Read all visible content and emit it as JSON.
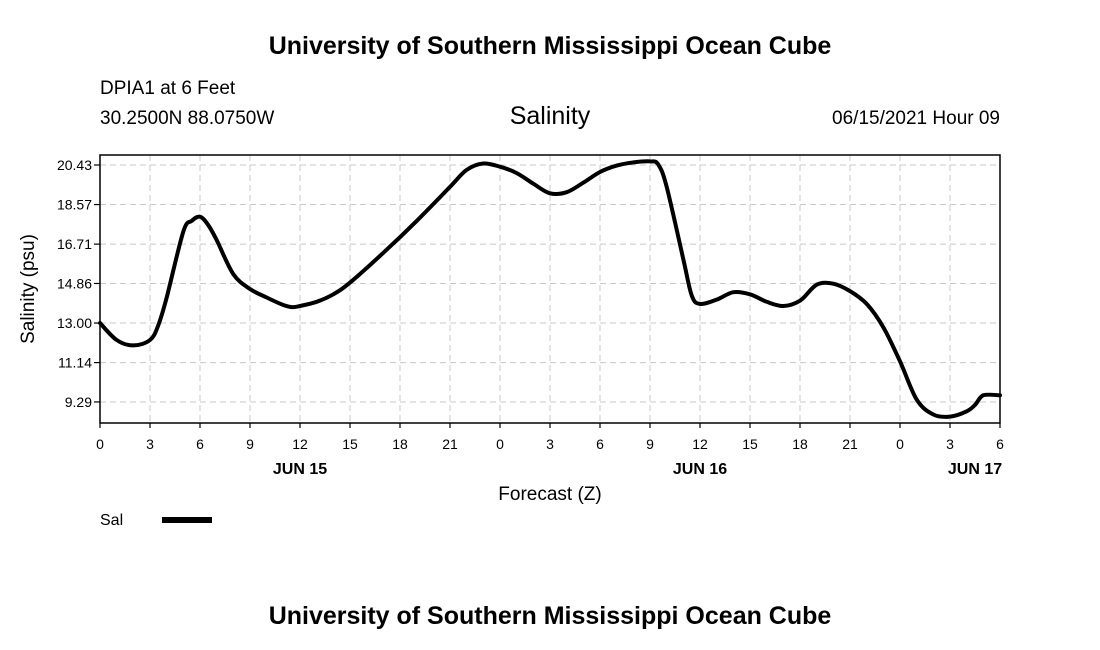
{
  "header": {
    "title_top": "University of Southern Mississippi Ocean Cube",
    "station": "DPIA1 at 6 Feet",
    "coords": "30.2500N  88.0750W",
    "variable": "Salinity",
    "datetime": "06/15/2021 Hour 09"
  },
  "footer": {
    "title_bottom": "University of Southern Mississippi Ocean Cube"
  },
  "legend": {
    "label": "Sal",
    "color": "#000000"
  },
  "chart_data": {
    "type": "line",
    "title": "Salinity",
    "xlabel": "Forecast (Z)",
    "ylabel": "Salinity (psu)",
    "grid": true,
    "x_unit": "hours since 2021-06-15 00Z",
    "xlim": [
      0,
      54
    ],
    "ylim": [
      8.3,
      20.9
    ],
    "y_ticks": [
      9.29,
      11.14,
      13.0,
      14.86,
      16.71,
      18.57,
      20.43
    ],
    "y_tick_labels": [
      "9.29",
      "11.14",
      "13.00",
      "14.86",
      "16.71",
      "18.57",
      "20.43"
    ],
    "x_ticks": [
      0,
      3,
      6,
      9,
      12,
      15,
      18,
      21,
      24,
      27,
      30,
      33,
      36,
      39,
      42,
      45,
      48,
      51,
      54
    ],
    "x_tick_labels": [
      "0",
      "3",
      "6",
      "9",
      "12",
      "15",
      "18",
      "21",
      "0",
      "3",
      "6",
      "9",
      "12",
      "15",
      "18",
      "21",
      "0",
      "3",
      "6"
    ],
    "date_labels": [
      {
        "x": 12,
        "label": "JUN 15"
      },
      {
        "x": 36,
        "label": "JUN 16"
      },
      {
        "x": 52.5,
        "label": "JUN 17"
      }
    ],
    "series": [
      {
        "name": "Sal",
        "color": "#000000",
        "x": [
          0,
          1,
          2,
          3,
          3.5,
          4,
          5,
          5.5,
          6,
          6.5,
          7,
          8,
          9,
          10,
          11,
          11.5,
          12,
          13,
          14,
          15,
          17,
          19,
          21,
          22,
          23,
          24,
          25,
          26,
          27,
          28,
          29,
          30,
          31,
          32,
          33,
          33.5,
          34,
          35,
          35.5,
          36,
          37,
          38,
          39,
          40,
          41,
          42,
          43,
          44,
          45,
          46,
          47,
          48,
          49,
          50,
          51,
          52,
          52.5,
          53,
          54
        ],
        "y": [
          13.0,
          12.2,
          11.95,
          12.2,
          12.9,
          14.2,
          17.3,
          17.8,
          18.0,
          17.6,
          16.9,
          15.3,
          14.6,
          14.2,
          13.85,
          13.75,
          13.8,
          14.0,
          14.35,
          14.9,
          16.3,
          17.8,
          19.4,
          20.2,
          20.5,
          20.35,
          20.05,
          19.55,
          19.1,
          19.15,
          19.6,
          20.1,
          20.4,
          20.55,
          20.6,
          20.45,
          19.4,
          16.0,
          14.3,
          13.9,
          14.1,
          14.45,
          14.35,
          14.0,
          13.8,
          14.05,
          14.8,
          14.85,
          14.5,
          13.9,
          12.8,
          11.2,
          9.4,
          8.7,
          8.6,
          8.85,
          9.15,
          9.6,
          9.6
        ]
      }
    ]
  }
}
